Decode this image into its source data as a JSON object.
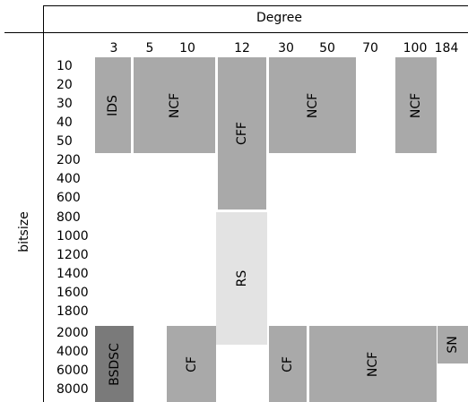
{
  "header": {
    "degree_title": "Degree",
    "bitsize_title": "bitsize"
  },
  "degrees": [
    "3",
    "5",
    "10",
    "12",
    "30",
    "50",
    "70",
    "100",
    "184"
  ],
  "bitsizes": [
    "10",
    "20",
    "30",
    "40",
    "50",
    "200",
    "400",
    "600",
    "800",
    "1000",
    "1200",
    "1400",
    "1600",
    "1800",
    "2000",
    "4000",
    "6000",
    "8000"
  ],
  "blocks": [
    {
      "label": "IDS",
      "shade": "#a9a9a9"
    },
    {
      "label": "NCF",
      "shade": "#a9a9a9"
    },
    {
      "label": "CFF",
      "shade": "#a9a9a9"
    },
    {
      "label": "NCF",
      "shade": "#a9a9a9"
    },
    {
      "label": "NCF",
      "shade": "#a9a9a9"
    },
    {
      "label": "RS",
      "shade": "#e3e3e3"
    },
    {
      "label": "BSDSC",
      "shade": "#7a7a7a"
    },
    {
      "label": "CF",
      "shade": "#a9a9a9"
    },
    {
      "label": "CF",
      "shade": "#a9a9a9"
    },
    {
      "label": "NCF",
      "shade": "#a9a9a9"
    },
    {
      "label": "SN",
      "shade": "#a9a9a9"
    }
  ]
}
